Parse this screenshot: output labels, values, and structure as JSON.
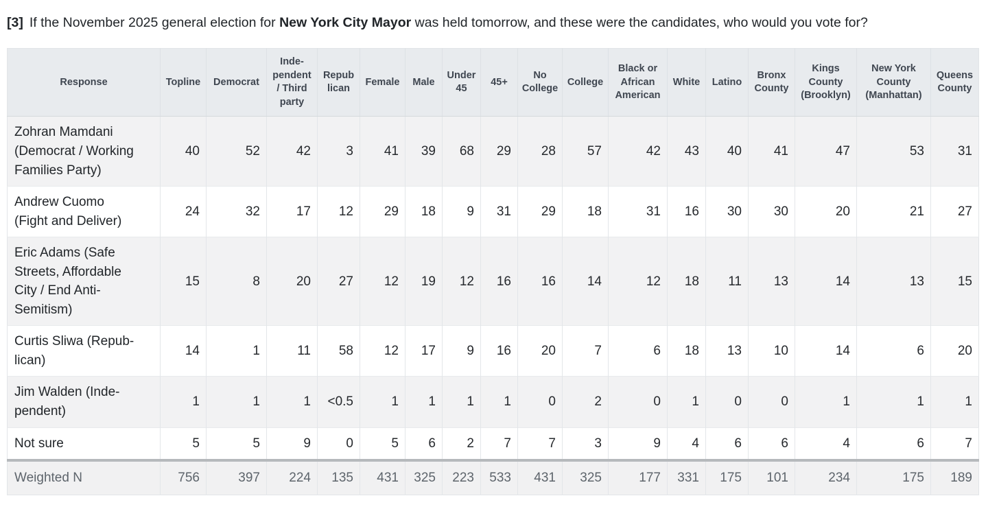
{
  "question": {
    "number": "[3]",
    "lead": "If the November 2025 general election for ",
    "subject": "New York City Mayor",
    "tail": " was held tomorrow, and these were the candidates, who would you vote for?"
  },
  "colors": {
    "header_bg": "#e8ebee",
    "stripe_bg": "#f2f2f3",
    "footer_bg": "#f1f1f2",
    "footer_top_border": "#b6b9bc",
    "header_text": "#3f4650",
    "body_text": "#26292d",
    "footer_text": "#5d646b"
  },
  "chart_data": {
    "type": "table",
    "columns": [
      "Response",
      "Topline",
      "Democrat",
      "Inde-\npendent\n/ Third\nparty",
      "Repub\nlican",
      "Female",
      "Male",
      "Under\n45",
      "45+",
      "No\nCollege",
      "College",
      "Black or\nAfrican\nAmerican",
      "White",
      "Latino",
      "Bronx\nCounty",
      "Kings\nCounty\n(Brooklyn)",
      "New York\nCounty\n(Manhattan)",
      "Queens\nCounty"
    ],
    "rows": [
      {
        "label": "Zohran Mamdani\n(Democrat / Working\nFamilies Party)",
        "values": [
          "40",
          "52",
          "42",
          "3",
          "41",
          "39",
          "68",
          "29",
          "28",
          "57",
          "42",
          "43",
          "40",
          "41",
          "47",
          "53",
          "31"
        ]
      },
      {
        "label": "Andrew Cuomo\n(Fight and Deliver)",
        "values": [
          "24",
          "32",
          "17",
          "12",
          "29",
          "18",
          "9",
          "31",
          "29",
          "18",
          "31",
          "16",
          "30",
          "30",
          "20",
          "21",
          "27"
        ]
      },
      {
        "label": "Eric Adams (Safe\nStreets, Affordable\nCity / End Anti-\nSemitism)",
        "values": [
          "15",
          "8",
          "20",
          "27",
          "12",
          "19",
          "12",
          "16",
          "16",
          "14",
          "12",
          "18",
          "11",
          "13",
          "14",
          "13",
          "15"
        ]
      },
      {
        "label": "Curtis Sliwa (Repub-\nlican)",
        "values": [
          "14",
          "1",
          "11",
          "58",
          "12",
          "17",
          "9",
          "16",
          "20",
          "7",
          "6",
          "18",
          "13",
          "10",
          "14",
          "6",
          "20"
        ]
      },
      {
        "label": "Jim Walden (Inde-\npendent)",
        "values": [
          "1",
          "1",
          "1",
          "<0.5",
          "1",
          "1",
          "1",
          "1",
          "0",
          "2",
          "0",
          "1",
          "0",
          "0",
          "1",
          "1",
          "1"
        ]
      },
      {
        "label": "Not sure",
        "values": [
          "5",
          "5",
          "9",
          "0",
          "5",
          "6",
          "2",
          "7",
          "7",
          "3",
          "9",
          "4",
          "6",
          "6",
          "4",
          "6",
          "7"
        ]
      }
    ],
    "footer_row": {
      "label": "Weighted N",
      "values": [
        "756",
        "397",
        "224",
        "135",
        "431",
        "325",
        "223",
        "533",
        "431",
        "325",
        "177",
        "331",
        "175",
        "101",
        "234",
        "175",
        "189"
      ]
    }
  }
}
